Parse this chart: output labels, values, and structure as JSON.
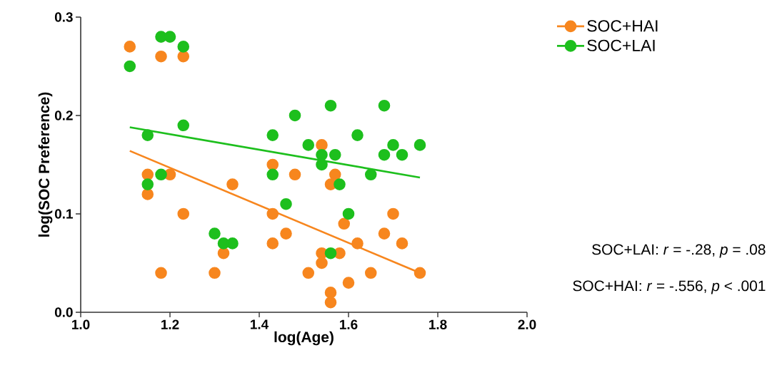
{
  "chart_data": {
    "type": "scatter",
    "xlabel": "log(Age)",
    "ylabel": "log(SOC Preference)",
    "xlim": [
      1.0,
      2.0
    ],
    "ylim": [
      0.0,
      0.3
    ],
    "xticks": [
      {
        "value": 1.0,
        "label": "1.0"
      },
      1.2,
      1.4,
      1.6,
      1.8,
      {
        "value": 2.0,
        "label": "2.0"
      }
    ],
    "yticks": [
      {
        "value": 0.0,
        "label": "0.0"
      },
      0.1,
      0.2,
      0.3
    ],
    "grid": false,
    "legend": "top right",
    "series": [
      {
        "name": "SOC+HAI",
        "marker": "circle",
        "color": "#f7861e",
        "x": [
          1.11,
          1.18,
          1.23,
          1.15,
          1.15,
          1.2,
          1.23,
          1.18,
          1.3,
          1.32,
          1.34,
          1.43,
          1.43,
          1.43,
          1.46,
          1.48,
          1.51,
          1.54,
          1.54,
          1.54,
          1.56,
          1.57,
          1.56,
          1.56,
          1.58,
          1.59,
          1.6,
          1.62,
          1.65,
          1.68,
          1.7,
          1.72,
          1.76
        ],
        "values": [
          0.27,
          0.26,
          0.26,
          0.14,
          0.12,
          0.14,
          0.1,
          0.04,
          0.04,
          0.06,
          0.13,
          0.15,
          0.1,
          0.07,
          0.08,
          0.14,
          0.04,
          0.17,
          0.06,
          0.05,
          0.13,
          0.14,
          0.02,
          0.01,
          0.06,
          0.09,
          0.03,
          0.07,
          0.04,
          0.08,
          0.1,
          0.07,
          0.04
        ]
      },
      {
        "name": "SOC+LAI",
        "marker": "circle",
        "color": "#1dbf1d",
        "x": [
          1.11,
          1.18,
          1.2,
          1.23,
          1.23,
          1.15,
          1.15,
          1.18,
          1.3,
          1.32,
          1.34,
          1.43,
          1.43,
          1.46,
          1.48,
          1.56,
          1.68,
          1.62,
          1.51,
          1.54,
          1.54,
          1.57,
          1.65,
          1.58,
          1.68,
          1.7,
          1.72,
          1.76,
          1.6,
          1.56
        ],
        "values": [
          0.25,
          0.28,
          0.28,
          0.27,
          0.19,
          0.18,
          0.13,
          0.14,
          0.08,
          0.07,
          0.07,
          0.18,
          0.14,
          0.11,
          0.2,
          0.21,
          0.21,
          0.18,
          0.17,
          0.16,
          0.15,
          0.16,
          0.14,
          0.13,
          0.16,
          0.17,
          0.16,
          0.17,
          0.1,
          0.06
        ]
      },
      {
        "type": "line",
        "marker": "none",
        "color": "#f7861e",
        "x": [
          1.11,
          1.76
        ],
        "values": [
          0.164,
          0.04
        ]
      },
      {
        "type": "line",
        "marker": "none",
        "color": "#1dbf1d",
        "x": [
          1.11,
          1.76
        ],
        "values": [
          0.188,
          0.137
        ]
      }
    ],
    "annotations": [
      "SOC+LAI: *r* = -.28, *p* = .08",
      "SOC+HAI: *r* = -.556, *p* < .001"
    ]
  }
}
